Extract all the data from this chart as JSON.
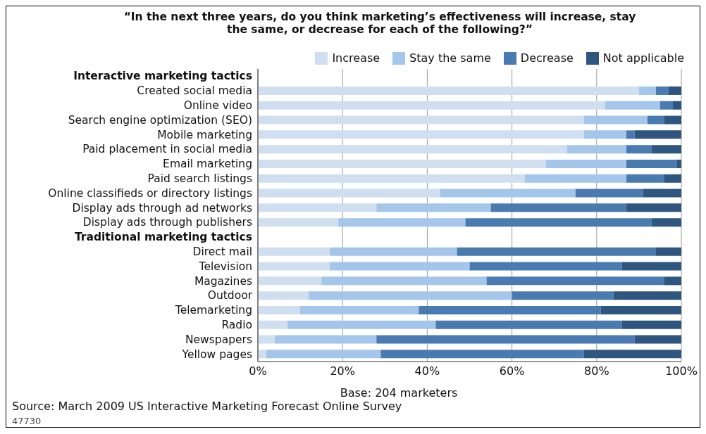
{
  "chart_data": {
    "type": "bar",
    "orientation": "horizontal",
    "stacked": true,
    "title": "“In the next three years, do you think marketing’s effectiveness will increase, stay the same, or decrease for each of the following?”",
    "categories": [
      "Interactive marketing tactics",
      "Created social media",
      "Online video",
      "Search engine optimization (SEO)",
      "Mobile marketing",
      "Paid placement in social media",
      "Email marketing",
      "Paid search listings",
      "Online classifieds or directory listings",
      "Display ads through ad networks",
      "Display ads through publishers",
      "Traditional marketing tactics",
      "Direct mail",
      "Television",
      "Magazines",
      "Outdoor",
      "Telemarketing",
      "Radio",
      "Newspapers",
      "Yellow pages"
    ],
    "series": [
      {
        "name": "Increase",
        "color": "#d0dff0",
        "values": [
          null,
          90,
          82,
          77,
          77,
          73,
          68,
          63,
          43,
          28,
          19,
          null,
          17,
          17,
          15,
          12,
          10,
          7,
          4,
          2
        ]
      },
      {
        "name": "Stay the same",
        "color": "#a3c6ea",
        "values": [
          null,
          4,
          13,
          15,
          10,
          14,
          19,
          24,
          32,
          27,
          30,
          null,
          30,
          33,
          39,
          48,
          28,
          35,
          24,
          27
        ]
      },
      {
        "name": "Decrease",
        "color": "#4a7bb0",
        "values": [
          null,
          3,
          3,
          4,
          2,
          6,
          12,
          9,
          16,
          32,
          44,
          null,
          47,
          36,
          42,
          24,
          43,
          44,
          61,
          48
        ]
      },
      {
        "name": "Not applicable",
        "color": "#2e567e",
        "values": [
          null,
          3,
          2,
          4,
          11,
          7,
          1,
          4,
          9,
          13,
          7,
          null,
          6,
          14,
          4,
          16,
          19,
          14,
          11,
          23
        ]
      }
    ],
    "xlim": [
      0,
      100
    ],
    "xticks": [
      {
        "value": 0,
        "label": "0%"
      },
      {
        "value": 20,
        "label": "20%"
      },
      {
        "value": 40,
        "label": "40%"
      },
      {
        "value": 60,
        "label": "60%"
      },
      {
        "value": 80,
        "label": "80%"
      },
      {
        "value": 100,
        "label": "100%"
      }
    ],
    "grid": "x",
    "legend": "top right",
    "annotations": [
      "Base: 204 marketers",
      "Source: March 2009 US Interactive Marketing Forecast Online Survey",
      "47730"
    ]
  }
}
